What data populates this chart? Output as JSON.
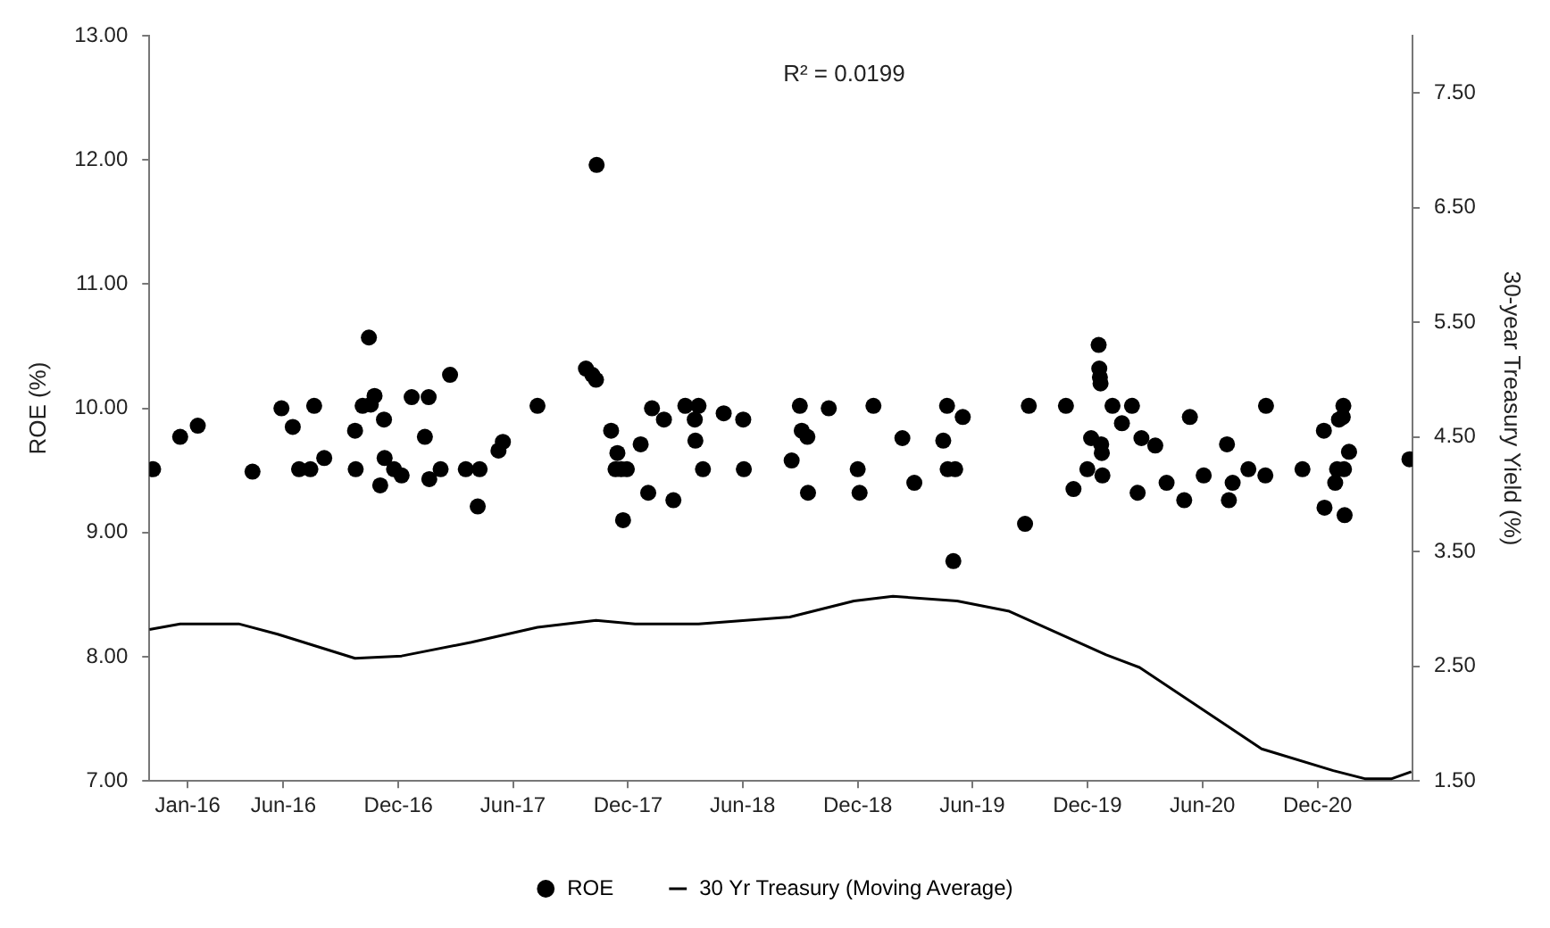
{
  "chart_data": {
    "type": "scatter",
    "ylabel": "ROE (%)",
    "y2label": "30-year Treasury Yield (%)",
    "annotations": [
      "R² = 0.0199"
    ],
    "xlim": [
      "2015-11-01",
      "2021-05-01"
    ],
    "xticks": [
      {
        "value": "2016-01-01",
        "label": "Jan-16"
      },
      {
        "value": "2016-06-01",
        "label": "Jun-16"
      },
      {
        "value": "2016-12-01",
        "label": "Dec-16"
      },
      {
        "value": "2017-06-01",
        "label": "Jun-17"
      },
      {
        "value": "2017-12-01",
        "label": "Dec-17"
      },
      {
        "value": "2018-06-01",
        "label": "Jun-18"
      },
      {
        "value": "2018-12-01",
        "label": "Dec-18"
      },
      {
        "value": "2019-06-01",
        "label": "Jun-19"
      },
      {
        "value": "2019-12-01",
        "label": "Dec-19"
      },
      {
        "value": "2020-06-01",
        "label": "Jun-20"
      },
      {
        "value": "2020-12-01",
        "label": "Dec-20"
      }
    ],
    "ylim": [
      7,
      13
    ],
    "yticks": [
      {
        "value": 7,
        "label": "7.00"
      },
      {
        "value": 8,
        "label": "8.00"
      },
      {
        "value": 9,
        "label": "9.00"
      },
      {
        "value": 10,
        "label": "10.00"
      },
      {
        "value": 11,
        "label": "11.00"
      },
      {
        "value": 12,
        "label": "12.00"
      },
      {
        "value": 13,
        "label": "13.00"
      }
    ],
    "y2lim": [
      1.5,
      8
    ],
    "y2ticks": [
      {
        "value": 1.5,
        "label": "1.50"
      },
      {
        "value": 2.5,
        "label": "2.50"
      },
      {
        "value": 3.5,
        "label": "3.50"
      },
      {
        "value": 4.5,
        "label": "4.50"
      },
      {
        "value": 5.5,
        "label": "5.50"
      },
      {
        "value": 6.5,
        "label": "6.50"
      },
      {
        "value": 7.5,
        "label": "7.50"
      }
    ],
    "grid": false,
    "legend": "bottom",
    "series": [
      {
        "name": "ROE",
        "marker": "circle",
        "color": "#000000",
        "x": [
          "2015-11-07",
          "2015-12-20",
          "2016-01-17",
          "2016-04-13",
          "2016-05-29",
          "2016-06-16",
          "2016-06-26",
          "2016-07-14",
          "2016-07-20",
          "2016-08-05",
          "2016-09-23",
          "2016-09-24",
          "2016-10-05",
          "2016-10-18",
          "2016-10-24",
          "2016-10-15",
          "2016-11-02",
          "2016-11-08",
          "2016-11-09",
          "2016-11-24",
          "2016-12-06",
          "2016-12-22",
          "2017-01-18",
          "2017-01-12",
          "2017-01-19",
          "2017-02-06",
          "2017-02-21",
          "2017-03-18",
          "2017-04-09",
          "2017-04-06",
          "2017-05-09",
          "2017-05-16",
          "2017-07-10",
          "2017-09-25",
          "2017-10-05",
          "2017-10-11",
          "2017-10-12",
          "2017-11-04",
          "2017-11-11",
          "2017-11-20",
          "2017-11-29",
          "2017-11-14",
          "2017-11-23",
          "2017-12-21",
          "2018-01-02",
          "2018-01-08",
          "2018-01-27",
          "2018-02-11",
          "2018-03-02",
          "2018-03-23",
          "2018-03-17",
          "2018-03-18",
          "2018-03-30",
          "2018-05-02",
          "2018-06-02",
          "2018-06-03",
          "2018-08-18",
          "2018-08-31",
          "2018-09-03",
          "2018-09-12",
          "2018-09-13",
          "2018-10-16",
          "2018-12-01",
          "2018-12-04",
          "2018-12-26",
          "2019-02-10",
          "2019-03-01",
          "2019-04-16",
          "2019-04-22",
          "2019-04-23",
          "2019-05-05",
          "2019-05-17",
          "2019-05-02",
          "2019-08-24",
          "2019-08-30",
          "2019-10-28",
          "2019-11-09",
          "2019-12-07",
          "2019-12-01",
          "2019-12-19",
          "2019-12-20",
          "2019-12-21",
          "2019-12-22",
          "2019-12-23",
          "2019-12-24",
          "2019-12-25",
          "2020-01-10",
          "2020-02-10",
          "2020-01-25",
          "2020-02-19",
          "2020-02-25",
          "2020-03-18",
          "2020-04-05",
          "2020-05-03",
          "2020-05-12",
          "2020-06-03",
          "2020-07-10",
          "2020-07-13",
          "2020-07-19",
          "2020-08-13",
          "2020-09-09",
          "2020-09-10",
          "2020-11-07",
          "2020-12-11",
          "2021-01-04",
          "2021-01-10",
          "2021-01-11",
          "2021-01-01",
          "2021-01-12",
          "2020-12-29",
          "2021-01-20",
          "2020-12-12",
          "2021-01-13",
          "2021-04-26"
        ],
        "values": [
          9.51,
          9.77,
          9.86,
          9.49,
          10.0,
          9.85,
          9.51,
          9.51,
          10.02,
          9.6,
          9.82,
          9.51,
          10.02,
          10.03,
          10.1,
          10.57,
          9.38,
          9.91,
          9.6,
          9.51,
          9.46,
          10.09,
          10.09,
          9.77,
          9.43,
          9.51,
          10.27,
          9.51,
          9.51,
          9.21,
          9.66,
          9.73,
          10.02,
          10.32,
          10.27,
          10.23,
          11.96,
          9.82,
          9.51,
          9.51,
          9.51,
          9.64,
          9.1,
          9.71,
          9.32,
          10.0,
          9.91,
          9.26,
          10.02,
          10.02,
          9.91,
          9.74,
          9.51,
          9.96,
          9.91,
          9.51,
          9.58,
          10.02,
          9.82,
          9.77,
          9.32,
          10.0,
          9.51,
          9.32,
          10.02,
          9.76,
          9.4,
          9.74,
          10.02,
          9.51,
          9.51,
          9.93,
          8.77,
          9.07,
          10.02,
          10.02,
          9.35,
          9.76,
          9.51,
          10.51,
          10.32,
          10.25,
          10.2,
          9.71,
          9.64,
          9.46,
          10.02,
          10.02,
          9.88,
          9.32,
          9.76,
          9.7,
          9.4,
          9.26,
          9.93,
          9.46,
          9.71,
          9.26,
          9.4,
          9.51,
          9.46,
          10.02,
          9.51,
          9.82,
          9.91,
          9.93,
          10.02,
          9.51,
          9.51,
          9.4,
          9.65,
          9.2,
          9.14,
          9.59
        ]
      },
      {
        "name": "30 Yr Treasury (Moving Average)",
        "type": "line",
        "axis": "y2",
        "marker": "none",
        "line_style": "solid",
        "color": "#000000",
        "x": [
          "2015-11-01",
          "2015-12-20",
          "2016-03-22",
          "2016-05-23",
          "2016-09-23",
          "2016-12-06",
          "2017-03-27",
          "2017-07-10",
          "2017-10-11",
          "2017-12-12",
          "2018-03-23",
          "2018-08-15",
          "2018-11-25",
          "2019-01-26",
          "2019-05-08",
          "2019-07-30",
          "2019-12-31",
          "2020-02-22",
          "2020-07-13",
          "2020-09-03",
          "2020-12-26",
          "2021-02-14",
          "2021-03-29",
          "2021-04-29"
        ],
        "values": [
          2.82,
          2.87,
          2.87,
          2.78,
          2.57,
          2.59,
          2.71,
          2.84,
          2.9,
          2.87,
          2.87,
          2.93,
          3.07,
          3.11,
          3.07,
          2.98,
          2.6,
          2.49,
          1.97,
          1.78,
          1.59,
          1.52,
          1.52,
          1.58
        ]
      }
    ]
  }
}
